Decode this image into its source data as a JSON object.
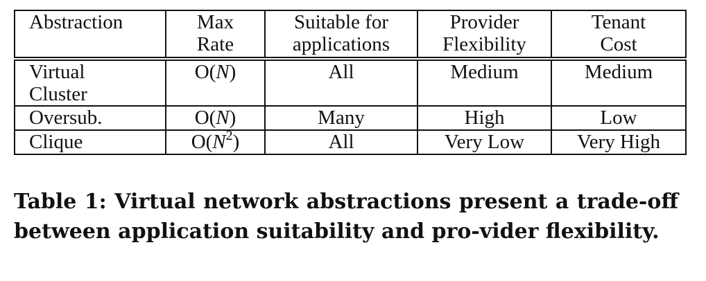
{
  "table": {
    "headers": [
      {
        "line1": "Abstraction",
        "line2": ""
      },
      {
        "line1": "Max",
        "line2": "Rate"
      },
      {
        "line1": "Suitable for",
        "line2": "applications"
      },
      {
        "line1": "Provider",
        "line2": "Flexibility"
      },
      {
        "line1": "Tenant",
        "line2": "Cost"
      }
    ],
    "rows": [
      {
        "abstraction_line1": "Virtual",
        "abstraction_line2": "Cluster",
        "rate_prefix": "O(",
        "rate_var": "N",
        "rate_exp": "",
        "rate_suffix": ")",
        "suitable": "All",
        "flexibility": "Medium",
        "cost": "Medium"
      },
      {
        "abstraction_line1": "Oversub.",
        "abstraction_line2": "",
        "rate_prefix": "O(",
        "rate_var": "N",
        "rate_exp": "",
        "rate_suffix": ")",
        "suitable": "Many",
        "flexibility": "High",
        "cost": "Low"
      },
      {
        "abstraction_line1": "Clique",
        "abstraction_line2": "",
        "rate_prefix": "O(",
        "rate_var": "N",
        "rate_exp": "2",
        "rate_suffix": ")",
        "suitable": "All",
        "flexibility": "Very Low",
        "cost": "Very High"
      }
    ]
  },
  "caption": {
    "text": "Table 1: Virtual network abstractions present a trade-off between application suitability and pro-vider flexibility."
  }
}
